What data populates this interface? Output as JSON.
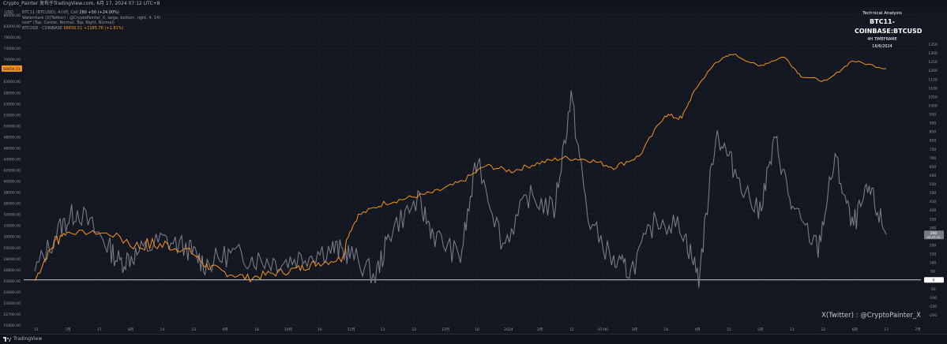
{
  "header": {
    "caption": "Crypto_Painter 发布于TradingView.com, 6月 17, 2024 07:12 UTC+8"
  },
  "legend": {
    "unit": "USD",
    "line1_name": "BTC11 (BTCUSD), 4小时, Cell",
    "line1_value": "260 +50 (+24.00%)",
    "line2": "Watermark (X(Twitter) : @CryptoPainter_X, large, bottom, right, 4, 14)",
    "line3": "text* (Top, Center, Normal, Top, Right, Normal)",
    "line4_name": "BTCUSD · COINBASE",
    "line4_value": "66656.51 +1185.76 (+1.81%)"
  },
  "annotation": {
    "line1": "Technical Analysis",
    "line2": "BTC11-COINBASE:BTCUSD",
    "line3": "4H TIMEFRAME",
    "line4": "16/6/2024"
  },
  "watermark": "X(Twitter) : @CryptoPainter_X",
  "footer": {
    "brand": "TradingView"
  },
  "colors": {
    "background": "#131722",
    "price_line": "#f7931a",
    "indicator_line": "#787b86",
    "zero_line": "#ffffff"
  },
  "chart_data": {
    "type": "line",
    "x_ticks": [
      "21",
      "7月",
      "17",
      "8月",
      "14",
      "23",
      "9月",
      "18",
      "10月",
      "16",
      "11月",
      "13",
      "22",
      "12月",
      "18",
      "2024",
      "2月",
      "12",
      "07:00",
      "3月",
      "18",
      "4月",
      "15",
      "5月",
      "13",
      "22",
      "6月",
      "17",
      "7月"
    ],
    "left_axis": {
      "label": "USD",
      "ticks": [
        "86000.00",
        "82000.00",
        "78000.00",
        "74000.00",
        "70000.00",
        "66000.00",
        "62000.00",
        "58000.00",
        "55000.00",
        "52000.00",
        "50000.00",
        "48000.00",
        "46000.00",
        "44000.00",
        "42000.00",
        "40000.00",
        "38000.00",
        "36000.00",
        "34000.00",
        "32000.00",
        "30000.00",
        "29500.00",
        "28000.00",
        "26800.00",
        "25600.00",
        "24600.00",
        "23600.00",
        "22700.00",
        "21800.00"
      ],
      "badge": "66656.51"
    },
    "right_axis": {
      "ticks": [
        "1350",
        "1300",
        "1250",
        "1200",
        "1150",
        "1100",
        "1050",
        "1000",
        "950",
        "900",
        "850",
        "800",
        "750",
        "700",
        "650",
        "600",
        "550",
        "500",
        "450",
        "400",
        "350",
        "300",
        "250",
        "200",
        "150",
        "100",
        "50",
        "0",
        "-50",
        "-100",
        "-150",
        "-200"
      ],
      "badge_value": "260",
      "badge_time": "02:47:10",
      "zero_badge": "0",
      "range": [
        -200,
        1350
      ]
    },
    "series": [
      {
        "name": "BTCUSD · COINBASE",
        "x": [
          0,
          0.02,
          0.04,
          0.08,
          0.12,
          0.15,
          0.18,
          0.2,
          0.22,
          0.25,
          0.28,
          0.31,
          0.33,
          0.36,
          0.38,
          0.41,
          0.44,
          0.47,
          0.5,
          0.53,
          0.56,
          0.59,
          0.62,
          0.65,
          0.68,
          0.71,
          0.74,
          0.76,
          0.78,
          0.8,
          0.82,
          0.85,
          0.88,
          0.9,
          0.93,
          0.96,
          1.0
        ],
        "values": [
          25600,
          29500,
          30800,
          30600,
          29500,
          29600,
          29200,
          27300,
          26600,
          25900,
          26400,
          26900,
          27500,
          28000,
          33800,
          36000,
          37000,
          38000,
          39800,
          42800,
          41800,
          43200,
          44200,
          43900,
          42500,
          44500,
          52000,
          51300,
          61000,
          69000,
          72000,
          67500,
          71000,
          64000,
          62000,
          69500,
          66656.51
        ]
      },
      {
        "name": "BTC11",
        "x": [
          0,
          0.03,
          0.05,
          0.08,
          0.1,
          0.12,
          0.15,
          0.18,
          0.2,
          0.23,
          0.26,
          0.29,
          0.32,
          0.35,
          0.37,
          0.4,
          0.42,
          0.45,
          0.47,
          0.5,
          0.52,
          0.55,
          0.58,
          0.61,
          0.63,
          0.65,
          0.68,
          0.7,
          0.73,
          0.76,
          0.78,
          0.8,
          0.82,
          0.85,
          0.87,
          0.89,
          0.92,
          0.94,
          0.96,
          0.98,
          1.0
        ],
        "values": [
          50,
          300,
          400,
          230,
          100,
          150,
          230,
          180,
          90,
          150,
          120,
          100,
          140,
          180,
          150,
          20,
          300,
          450,
          250,
          130,
          700,
          200,
          480,
          400,
          1050,
          350,
          100,
          50,
          350,
          300,
          10,
          850,
          650,
          380,
          800,
          400,
          180,
          700,
          300,
          520,
          260
        ]
      }
    ],
    "reference_line": 0
  }
}
